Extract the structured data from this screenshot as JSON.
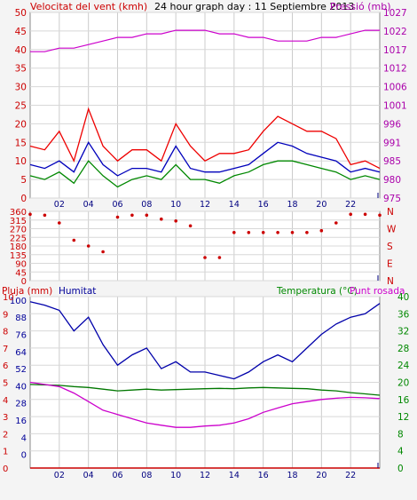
{
  "top": {
    "left_label": "Velocitat del vent (kmh)",
    "title": "24 hour graph day : 11 Septiembre 2013",
    "right_label": "Pressió (mb)",
    "left_ticks": [
      "50",
      "45",
      "40",
      "35",
      "30",
      "25",
      "20",
      "15",
      "10",
      "5",
      "0"
    ],
    "right_ticks": [
      "1027",
      "1022",
      "1017",
      "1012",
      "1006",
      "1001",
      "996",
      "991",
      "985",
      "980",
      "975"
    ]
  },
  "mid": {
    "left_ticks": [
      "360",
      "315",
      "270",
      "225",
      "180",
      "135",
      "90",
      "45",
      "0"
    ],
    "right_ticks": [
      "N",
      "W",
      "S",
      "E",
      "N"
    ]
  },
  "bottom": {
    "rain_label": "Pluja (mm)",
    "hum_label": "Humitat",
    "temp_label": "Temperatura (°C)",
    "dew_label": "Punt rosada",
    "left_rain_ticks": [
      "10",
      "9",
      "8",
      "7",
      "6",
      "5",
      "4",
      "3",
      "2",
      "1",
      "0"
    ],
    "left_hum_ticks": [
      "100",
      "88",
      "76",
      "64",
      "52",
      "40",
      "28",
      "16",
      "4",
      "0"
    ],
    "right_ticks": [
      "40",
      "36",
      "32",
      "28",
      "24",
      "20",
      "16",
      "12",
      "8",
      "4",
      "0"
    ]
  },
  "x_ticks": [
    "02",
    "04",
    "06",
    "08",
    "10",
    "12",
    "14",
    "16",
    "18",
    "20",
    "22"
  ],
  "colors": {
    "gust": "#ee0000",
    "wind_avg": "#0000bb",
    "wind_green": "#008800",
    "pressure": "#cc00cc",
    "direction": "#cc0000",
    "humidity": "#0000aa",
    "temperature": "#007700",
    "dewpoint": "#cc00cc",
    "rain": "#cc0000",
    "left_axis": "#cc0000",
    "right_axis_pressure": "#aa00aa",
    "right_axis_temp": "#008800",
    "hum_label": "#000099"
  },
  "chart_data": [
    {
      "type": "line",
      "x": [
        0,
        1,
        2,
        3,
        4,
        5,
        6,
        7,
        8,
        9,
        10,
        11,
        12,
        13,
        14,
        15,
        16,
        17,
        18,
        19,
        20,
        21,
        22,
        23,
        24
      ],
      "ylim": [
        0,
        50
      ],
      "ylim_right": [
        975,
        1027
      ],
      "series": [
        {
          "values": [
            14,
            13,
            18,
            10,
            24,
            14,
            10,
            13,
            13,
            10,
            20,
            14,
            10,
            12,
            12,
            13,
            18,
            22,
            20,
            18,
            18,
            16,
            9,
            10,
            8
          ]
        },
        {
          "values": [
            9,
            8,
            10,
            7,
            15,
            9,
            6,
            8,
            8,
            7,
            14,
            8,
            7,
            7,
            8,
            9,
            12,
            15,
            14,
            12,
            11,
            10,
            7,
            8,
            7
          ]
        },
        {
          "values": [
            6,
            5,
            7,
            4,
            10,
            6,
            3,
            5,
            6,
            5,
            9,
            5,
            5,
            4,
            6,
            7,
            9,
            10,
            10,
            9,
            8,
            7,
            5,
            6,
            5
          ]
        },
        {
          "values": [
            1016,
            1016,
            1017,
            1017,
            1018,
            1019,
            1020,
            1020,
            1021,
            1021,
            1022,
            1022,
            1022,
            1021,
            1021,
            1020,
            1020,
            1019,
            1019,
            1019,
            1020,
            1020,
            1021,
            1022,
            1022
          ]
        }
      ]
    },
    {
      "type": "scatter",
      "x": [
        0,
        1,
        2,
        3,
        4,
        5,
        6,
        7,
        8,
        9,
        10,
        11,
        12,
        13,
        14,
        15,
        16,
        17,
        18,
        19,
        20,
        21,
        22,
        23,
        24
      ],
      "ylim": [
        0,
        360
      ],
      "series": [
        {
          "values": [
            345,
            340,
            300,
            210,
            180,
            150,
            330,
            340,
            340,
            320,
            310,
            285,
            120,
            120,
            250,
            250,
            250,
            250,
            250,
            250,
            260,
            300,
            345,
            345,
            340
          ]
        }
      ]
    },
    {
      "type": "line",
      "x": [
        0,
        1,
        2,
        3,
        4,
        5,
        6,
        7,
        8,
        9,
        10,
        11,
        12,
        13,
        14,
        15,
        16,
        17,
        18,
        19,
        20,
        21,
        22,
        23,
        24
      ],
      "ylim": [
        0,
        10
      ],
      "ylim_right": [
        0,
        40
      ],
      "series": [
        {
          "values": [
            0,
            0,
            0,
            0,
            0,
            0,
            0,
            0,
            0,
            0,
            0,
            0,
            0,
            0,
            0,
            0,
            0,
            0,
            0,
            0,
            0,
            0,
            0,
            0,
            0
          ]
        },
        {
          "values": [
            97,
            95,
            92,
            80,
            88,
            72,
            60,
            66,
            70,
            58,
            62,
            56,
            56,
            54,
            52,
            56,
            62,
            66,
            62,
            70,
            78,
            84,
            88,
            90,
            96
          ]
        },
        {
          "values": [
            19.5,
            19.4,
            19.3,
            19.0,
            18.8,
            18.4,
            18.0,
            18.2,
            18.4,
            18.2,
            18.3,
            18.4,
            18.5,
            18.6,
            18.5,
            18.7,
            18.8,
            18.7,
            18.6,
            18.5,
            18.2,
            18.0,
            17.6,
            17.3,
            17.0
          ]
        },
        {
          "values": [
            20.0,
            19.5,
            19.0,
            17.5,
            15.5,
            13.5,
            12.5,
            11.5,
            10.5,
            10.0,
            9.5,
            9.5,
            9.8,
            10.0,
            10.5,
            11.5,
            13.0,
            14.0,
            15.0,
            15.5,
            16.0,
            16.3,
            16.5,
            16.4,
            16.2
          ]
        }
      ]
    }
  ]
}
